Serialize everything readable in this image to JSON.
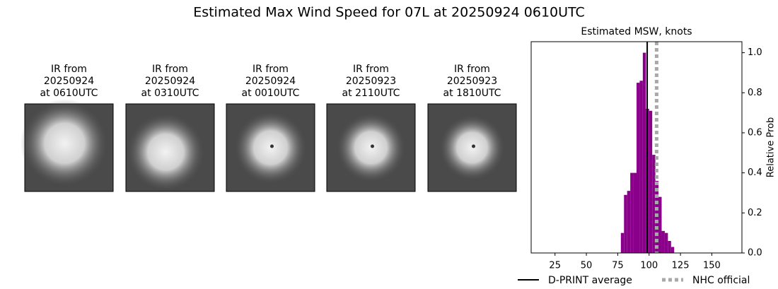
{
  "title": "Estimated Max Wind Speed for 07L at 20250924 0610UTC",
  "panels": [
    {
      "lines": [
        "IR from",
        "20250924",
        "at 0610UTC"
      ]
    },
    {
      "lines": [
        "IR from",
        "20250924",
        "at 0310UTC"
      ]
    },
    {
      "lines": [
        "IR from",
        "20250924",
        "at 0010UTC"
      ]
    },
    {
      "lines": [
        "IR from",
        "20250923",
        "at 2110UTC"
      ]
    },
    {
      "lines": [
        "IR from",
        "20250923",
        "at 1810UTC"
      ]
    }
  ],
  "chart_data": {
    "type": "histogram",
    "title": "Estimated MSW, knots",
    "y_label": "Relative Prob",
    "color": "#8b008b",
    "bins": [
      77.5,
      80,
      82.5,
      85,
      87.5,
      90,
      92.5,
      95,
      97.5,
      100,
      102.5,
      105,
      107.5,
      110,
      112.5,
      115,
      117.5,
      120
    ],
    "values": [
      0.1,
      0.29,
      0.31,
      0.4,
      0.4,
      0.85,
      0.86,
      1.0,
      0.72,
      0.71,
      0.49,
      0.36,
      0.28,
      0.11,
      0.1,
      0.06,
      0.03
    ],
    "xlim": [
      6,
      174
    ],
    "xticks": [
      25,
      50,
      75,
      100,
      125,
      150
    ],
    "ylim": [
      0,
      1.055
    ],
    "yticks": [
      {
        "value": 0,
        "label": "0.0"
      },
      0.2,
      0.4,
      0.6,
      0.8,
      {
        "value": 1,
        "label": "1.0"
      }
    ],
    "lines": [
      {
        "name": "D-PRINT average",
        "value": 98.5,
        "color": "#000000",
        "style": "solid"
      },
      {
        "name": "NHC official",
        "value": 106,
        "color": "#a9a9a9",
        "style": "dotted"
      }
    ]
  }
}
